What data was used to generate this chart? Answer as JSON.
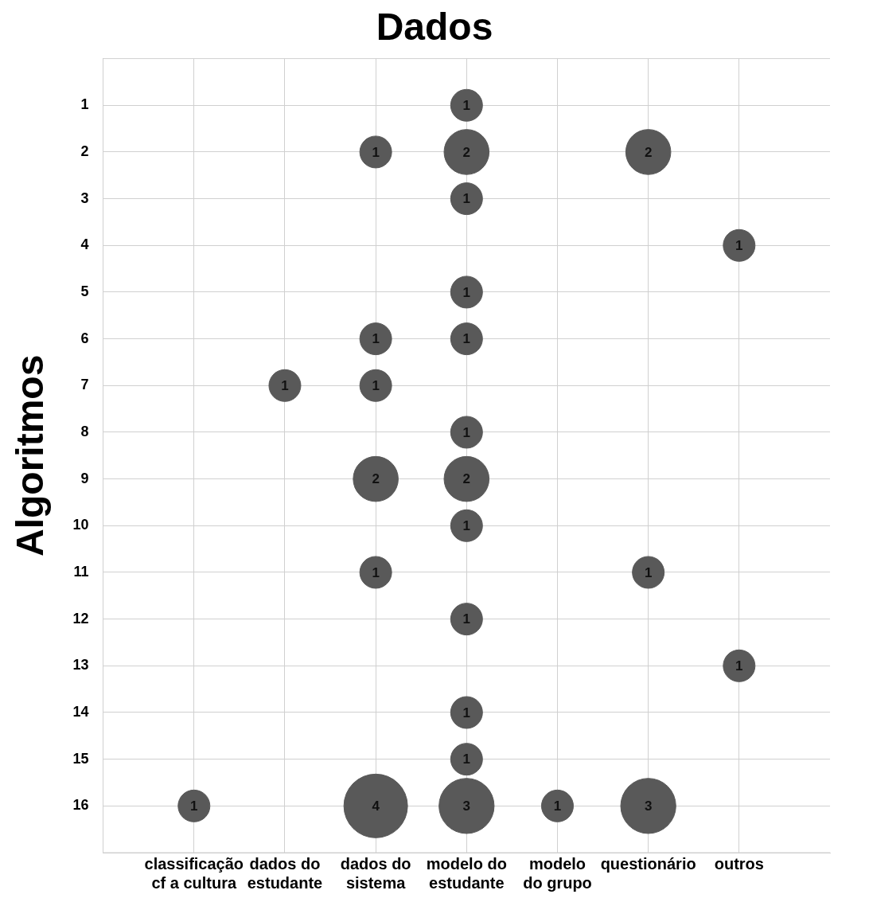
{
  "chart_data": {
    "type": "bubble",
    "title": "Dados",
    "ylabel": "Algoritmos",
    "categories": [
      "classificação cf a cultura",
      "dados do estudante",
      "dados do sistema",
      "modelo do estudante",
      "modelo do grupo",
      "questionário",
      "outros"
    ],
    "ylim": [
      17,
      0
    ],
    "yticks": [
      1,
      2,
      3,
      4,
      5,
      6,
      7,
      8,
      9,
      10,
      11,
      12,
      13,
      14,
      15,
      16
    ],
    "grid": true,
    "series": [
      {
        "color": "#595959",
        "x": [
          "modelo do estudante",
          "dados do sistema",
          "modelo do estudante",
          "questionário",
          "modelo do estudante",
          "outros",
          "modelo do estudante",
          "dados do sistema",
          "modelo do estudante",
          "dados do estudante",
          "dados do sistema",
          "modelo do estudante",
          "dados do sistema",
          "modelo do estudante",
          "modelo do estudante",
          "dados do sistema",
          "questionário",
          "modelo do estudante",
          "outros",
          "modelo do estudante",
          "modelo do estudante",
          "classificação cf a cultura",
          "dados do sistema",
          "modelo do estudante",
          "modelo do grupo",
          "questionário"
        ],
        "values": [
          1,
          2,
          2,
          2,
          3,
          4,
          5,
          6,
          6,
          7,
          7,
          8,
          9,
          9,
          10,
          11,
          11,
          12,
          13,
          14,
          15,
          16,
          16,
          16,
          16,
          16
        ],
        "sizes": [
          1,
          1,
          2,
          2,
          1,
          1,
          1,
          1,
          1,
          1,
          1,
          1,
          2,
          2,
          1,
          1,
          1,
          1,
          1,
          1,
          1,
          1,
          4,
          3,
          1,
          3
        ],
        "value_labels": [
          "1",
          "1",
          "2",
          "2",
          "1",
          "1",
          "1",
          "1",
          "1",
          "1",
          "1",
          "1",
          "2",
          "2",
          "1",
          "1",
          "1",
          "1",
          "1",
          "1",
          "1",
          "1",
          "4",
          "3",
          "1",
          "3"
        ]
      }
    ]
  }
}
